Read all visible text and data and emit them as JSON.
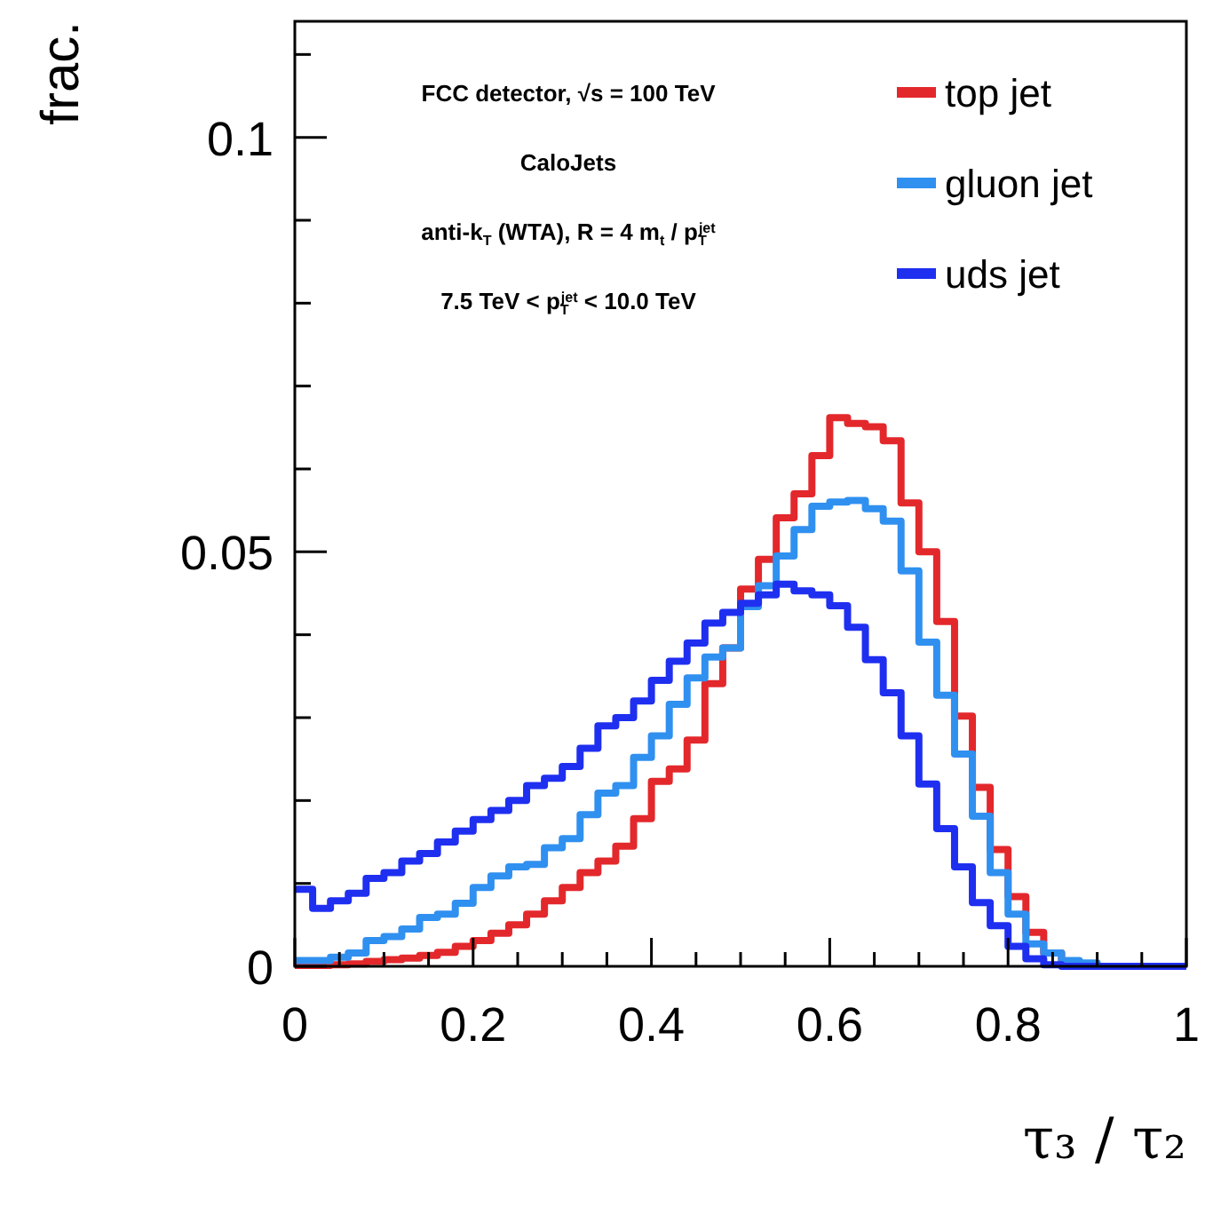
{
  "chart_data": {
    "type": "histogram",
    "xlabel": "τ₃ / τ₂",
    "ylabel": "frac.",
    "bins": [
      0,
      0.02,
      0.04,
      0.06,
      0.08,
      0.1,
      0.12,
      0.14,
      0.16,
      0.18,
      0.2,
      0.22,
      0.24,
      0.26,
      0.28,
      0.3,
      0.32,
      0.34,
      0.36,
      0.38,
      0.4,
      0.42,
      0.44,
      0.46,
      0.48,
      0.5,
      0.52,
      0.54,
      0.56,
      0.58,
      0.6,
      0.62,
      0.64,
      0.66,
      0.68,
      0.7,
      0.72,
      0.74,
      0.76,
      0.78,
      0.8,
      0.82,
      0.84,
      0.86,
      0.88,
      0.9,
      0.92,
      0.94,
      0.96,
      0.98,
      1
    ],
    "series": [
      {
        "name": "top jet",
        "color": "#e3282c",
        "values": [
          0.0001,
          0.0001,
          0.0002,
          0.0003,
          0.0006,
          0.0008,
          0.001,
          0.0013,
          0.0017,
          0.0024,
          0.0031,
          0.004,
          0.005,
          0.0063,
          0.0079,
          0.0095,
          0.0113,
          0.0127,
          0.0145,
          0.0178,
          0.0223,
          0.0238,
          0.0273,
          0.0341,
          0.0384,
          0.0455,
          0.0491,
          0.0541,
          0.057,
          0.0616,
          0.0662,
          0.0655,
          0.0651,
          0.0634,
          0.0559,
          0.05,
          0.0416,
          0.0302,
          0.0216,
          0.0141,
          0.0084,
          0.0041,
          0.0016,
          0.0006,
          0.0002,
          0,
          0,
          0,
          0,
          0
        ]
      },
      {
        "name": "gluon jet",
        "color": "#3090f0",
        "values": [
          0.0007,
          0.0007,
          0.0011,
          0.0016,
          0.0031,
          0.0036,
          0.0045,
          0.0059,
          0.0063,
          0.0076,
          0.0095,
          0.0109,
          0.012,
          0.0123,
          0.0143,
          0.0154,
          0.0183,
          0.0209,
          0.0218,
          0.0252,
          0.0278,
          0.0316,
          0.0348,
          0.0373,
          0.0384,
          0.0434,
          0.0459,
          0.0495,
          0.0527,
          0.0555,
          0.056,
          0.0562,
          0.0552,
          0.0537,
          0.0477,
          0.0391,
          0.0327,
          0.0256,
          0.0181,
          0.0113,
          0.0063,
          0.0027,
          0.0016,
          0.0007,
          0.0004,
          0,
          0,
          0,
          0,
          0
        ]
      },
      {
        "name": "uds jet",
        "color": "#1f2ff0",
        "values": [
          0.0093,
          0.007,
          0.0079,
          0.0088,
          0.0106,
          0.0113,
          0.0127,
          0.0136,
          0.015,
          0.0163,
          0.0177,
          0.0188,
          0.02,
          0.0218,
          0.0227,
          0.0241,
          0.0263,
          0.029,
          0.03,
          0.032,
          0.0345,
          0.0368,
          0.039,
          0.0414,
          0.0427,
          0.0438,
          0.0448,
          0.0461,
          0.0453,
          0.0448,
          0.0435,
          0.0409,
          0.037,
          0.033,
          0.0278,
          0.022,
          0.0166,
          0.012,
          0.0077,
          0.0049,
          0.0024,
          0.0009,
          0.0002,
          0,
          0,
          0,
          0,
          0,
          0,
          0
        ]
      }
    ],
    "xlim": [
      0,
      1
    ],
    "xticks": [
      0,
      {
        "value": 0.05,
        "label": null
      },
      {
        "value": 0.1,
        "label": null
      },
      {
        "value": 0.15,
        "label": null
      },
      0.2,
      {
        "value": 0.25,
        "label": null
      },
      {
        "value": 0.3,
        "label": null
      },
      {
        "value": 0.35,
        "label": null
      },
      0.4,
      {
        "value": 0.45,
        "label": null
      },
      {
        "value": 0.5,
        "label": null
      },
      {
        "value": 0.55,
        "label": null
      },
      0.6,
      {
        "value": 0.65,
        "label": null
      },
      {
        "value": 0.7,
        "label": null
      },
      {
        "value": 0.75,
        "label": null
      },
      0.8,
      {
        "value": 0.85,
        "label": null
      },
      {
        "value": 0.9,
        "label": null
      },
      {
        "value": 0.95,
        "label": null
      },
      1
    ],
    "ylim": [
      0,
      0.114
    ],
    "yticks": [
      0,
      {
        "value": 0.01,
        "label": null
      },
      {
        "value": 0.02,
        "label": null
      },
      {
        "value": 0.03,
        "label": null
      },
      {
        "value": 0.04,
        "label": null
      },
      0.05,
      {
        "value": 0.06,
        "label": null
      },
      {
        "value": 0.07,
        "label": null
      },
      {
        "value": 0.08,
        "label": null
      },
      {
        "value": 0.09,
        "label": null
      },
      0.1,
      {
        "value": 0.11,
        "label": null
      }
    ],
    "grid": false,
    "legend": "top right",
    "annotations": [
      "FCC detector,  √s = 100 TeV",
      "CaloJets",
      "anti-k$_{T}$ (WTA), R = 4 m$_{t}$ / p$_{T}$$^{jet}$",
      "7.5 TeV < p$_{T}$$^{jet}$ < 10.0 TeV"
    ]
  }
}
